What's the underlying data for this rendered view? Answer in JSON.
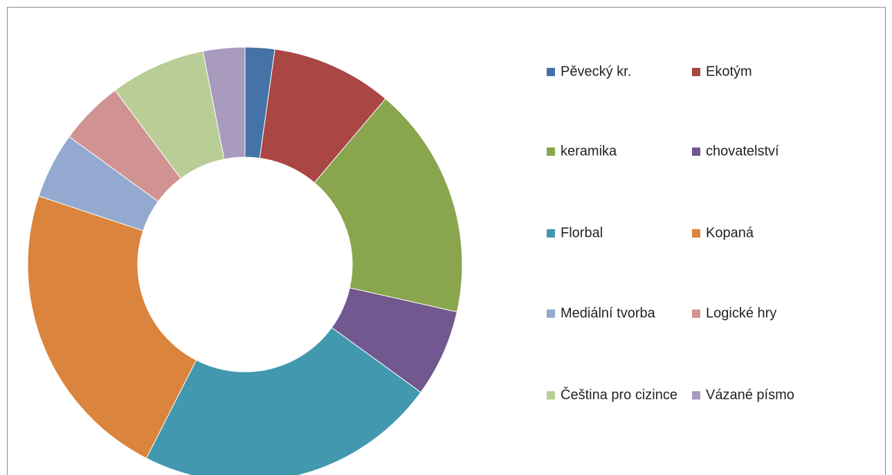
{
  "chart_data": {
    "type": "donut",
    "categories": [
      "Pěvecký kr.",
      "Ekotým",
      "keramika",
      "chovatelství",
      "Florbal",
      "Kopaná",
      "Mediální tvorba",
      "Logické hry",
      "Čeština pro cizince",
      "Vázané písmo"
    ],
    "values": [
      2.2,
      9.0,
      17.3,
      6.5,
      22.5,
      22.6,
      4.9,
      4.8,
      7.1,
      3.1
    ],
    "colors": [
      "#4572a7",
      "#aa4643",
      "#89a54e",
      "#71588f",
      "#4198af",
      "#db843d",
      "#93a9cf",
      "#d19392",
      "#b9cd96",
      "#a99bbd"
    ],
    "legend": "right"
  }
}
